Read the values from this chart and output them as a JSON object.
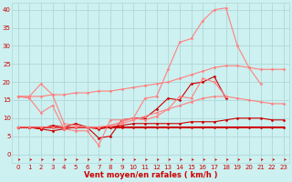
{
  "xlabel": "Vent moyen/en rafales ( km/h )",
  "background_color": "#cdf0f0",
  "grid_color": "#b0d8d8",
  "x": [
    0,
    1,
    2,
    3,
    4,
    5,
    6,
    7,
    8,
    9,
    10,
    11,
    12,
    13,
    14,
    15,
    16,
    17,
    18,
    19,
    20,
    21,
    22,
    23
  ],
  "lines": [
    {
      "y": [
        7.5,
        7.5,
        7.5,
        7.5,
        7.5,
        7.5,
        7.5,
        7.5,
        7.5,
        7.5,
        7.5,
        7.5,
        7.5,
        7.5,
        7.5,
        7.5,
        7.5,
        7.5,
        7.5,
        7.5,
        7.5,
        7.5,
        7.5,
        7.5
      ],
      "color": "#cc0000",
      "lw": 1.5,
      "marker": "D",
      "ms": 1.5,
      "linestyle": "-"
    },
    {
      "y": [
        7.5,
        7.5,
        7.0,
        6.5,
        7.0,
        7.5,
        7.5,
        7.0,
        7.5,
        8.0,
        8.5,
        8.5,
        8.5,
        8.5,
        8.5,
        9.0,
        9.0,
        9.0,
        9.5,
        10.0,
        10.0,
        10.0,
        9.5,
        9.5
      ],
      "color": "#cc0000",
      "lw": 0.8,
      "marker": "D",
      "ms": 1.5,
      "linestyle": "-"
    },
    {
      "y": [
        7.5,
        7.5,
        7.0,
        8.0,
        7.5,
        8.5,
        7.5,
        4.5,
        5.0,
        9.5,
        10.0,
        10.0,
        12.5,
        15.5,
        15.0,
        19.5,
        20.0,
        21.5,
        15.5,
        null,
        null,
        null,
        null,
        null
      ],
      "color": "#cc0000",
      "lw": 0.8,
      "marker": "D",
      "ms": 1.5,
      "linestyle": "-"
    },
    {
      "y": [
        16.0,
        15.5,
        11.5,
        13.5,
        7.0,
        6.5,
        6.5,
        2.5,
        9.5,
        9.5,
        10.0,
        9.5,
        10.5,
        12.5,
        16.0,
        15.5,
        21.0,
        20.0,
        16.0,
        null,
        null,
        null,
        null,
        null
      ],
      "color": "#ff8080",
      "lw": 0.8,
      "marker": "D",
      "ms": 1.5,
      "linestyle": "-"
    },
    {
      "y": [
        16.0,
        16.0,
        19.5,
        16.5,
        8.5,
        8.0,
        7.5,
        7.5,
        8.0,
        9.0,
        10.0,
        15.5,
        16.0,
        23.5,
        31.0,
        32.0,
        37.0,
        40.0,
        40.5,
        30.0,
        24.0,
        19.5,
        null,
        null
      ],
      "color": "#ff8080",
      "lw": 0.8,
      "marker": "D",
      "ms": 1.5,
      "linestyle": "-"
    },
    {
      "y": [
        16.0,
        16.0,
        16.0,
        16.5,
        16.5,
        17.0,
        17.0,
        17.5,
        17.5,
        18.0,
        18.5,
        19.0,
        19.5,
        20.0,
        21.0,
        22.0,
        23.0,
        24.0,
        24.5,
        24.5,
        24.0,
        23.5,
        23.5,
        23.5
      ],
      "color": "#ff8080",
      "lw": 0.8,
      "marker": "D",
      "ms": 1.5,
      "linestyle": "-"
    },
    {
      "y": [
        7.5,
        7.5,
        7.5,
        7.5,
        7.5,
        7.5,
        7.5,
        7.5,
        8.0,
        8.5,
        9.5,
        10.5,
        11.5,
        12.5,
        13.5,
        14.5,
        15.5,
        16.0,
        16.0,
        15.5,
        15.0,
        14.5,
        14.0,
        14.0
      ],
      "color": "#ff8080",
      "lw": 0.8,
      "marker": "D",
      "ms": 1.5,
      "linestyle": "-"
    }
  ],
  "ylim": [
    -2.5,
    42
  ],
  "yticks": [
    0,
    5,
    10,
    15,
    20,
    25,
    30,
    35,
    40
  ],
  "xlim": [
    -0.5,
    23.5
  ],
  "font_color": "#cc0000",
  "tick_fontsize": 5.0,
  "xlabel_fontsize": 6.0
}
